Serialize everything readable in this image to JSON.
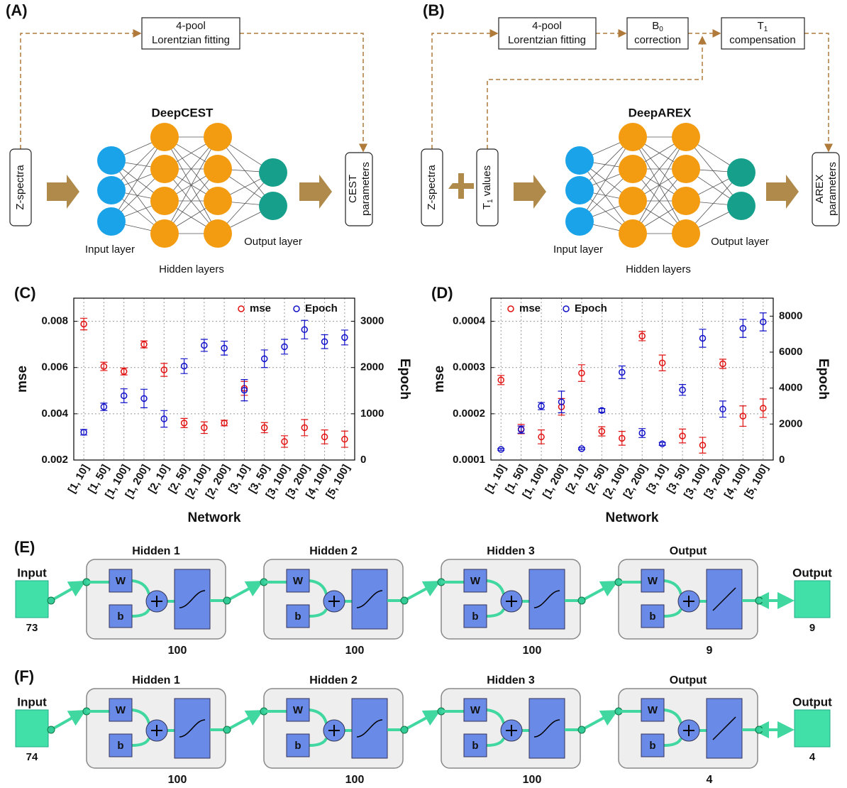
{
  "diagram_a": {
    "label": "(A)",
    "fitting": [
      "4-pool",
      "Lorentzian fitting"
    ],
    "input": "Z-spectra",
    "network": "DeepCEST",
    "output": [
      "CEST",
      "parameters"
    ],
    "input_layer": "Input layer",
    "hidden_layers": "Hidden layers",
    "output_layer": "Output layer"
  },
  "diagram_b": {
    "label": "(B)",
    "fitting": [
      "4-pool",
      "Lorentzian fitting"
    ],
    "b0": {
      "symbol": "B",
      "sub": "0",
      "text": "correction"
    },
    "t1": {
      "symbol": "T",
      "sub": "1",
      "text": "compensation"
    },
    "input": "Z-spectra",
    "t1_input": {
      "symbol": "T",
      "sub": "1",
      "text": " values"
    },
    "network": "DeepAREX",
    "output": [
      "AREX",
      "parameters"
    ],
    "input_layer": "Input layer",
    "hidden_layers": "Hidden layers",
    "output_layer": "Output layer"
  },
  "chart_data": [
    {
      "type": "scatter",
      "label": "(C)",
      "xlabel": "Network",
      "ylabel": "mse",
      "y2label": "Epoch",
      "legend": "upper right",
      "grid": true,
      "categories": [
        "[1, 10]",
        "[1, 50]",
        "[1, 100]",
        "[1, 200]",
        "[2, 10]",
        "[2, 50]",
        "[2, 100]",
        "[2, 200]",
        "[3, 10]",
        "[3, 50]",
        "[3, 100]",
        "[3, 200]",
        "[4, 100]",
        "[5, 100]"
      ],
      "ylim": [
        0.002,
        0.009
      ],
      "yticks": [
        0.002,
        0.004,
        0.006,
        0.008
      ],
      "y2lim": [
        0,
        3500
      ],
      "y2ticks": [
        0,
        1000,
        2000,
        3000
      ],
      "series": [
        {
          "name": "mse",
          "color": "#e01010",
          "values": [
            0.00788,
            0.00605,
            0.00583,
            0.007,
            0.0059,
            0.0036,
            0.0034,
            0.0036,
            0.0051,
            0.0034,
            0.0028,
            0.0034,
            0.003,
            0.0029
          ],
          "errors": [
            0.00025,
            0.00018,
            0.00015,
            0.00015,
            0.00028,
            0.0002,
            0.00025,
            0.00012,
            0.0003,
            0.00022,
            0.00025,
            0.00035,
            0.0003,
            0.00035
          ]
        },
        {
          "name": "Epoch",
          "color": "#1010c8",
          "axis": "y2",
          "values": [
            600,
            1150,
            1390,
            1330,
            890,
            2030,
            2480,
            2420,
            1510,
            2190,
            2450,
            2820,
            2560,
            2650
          ],
          "errors": [
            60,
            80,
            150,
            200,
            180,
            160,
            130,
            150,
            230,
            190,
            160,
            200,
            150,
            160
          ]
        }
      ]
    },
    {
      "type": "scatter",
      "label": "(D)",
      "xlabel": "Network",
      "ylabel": "mse",
      "y2label": "Epoch",
      "legend": "upper left",
      "grid": true,
      "categories": [
        "[1, 10]",
        "[1, 50]",
        "[1, 100]",
        "[1, 200]",
        "[2, 10]",
        "[2, 50]",
        "[2, 100]",
        "[2, 200]",
        "[3, 10]",
        "[3, 50]",
        "[3, 100]",
        "[3, 200]",
        "[4, 100]",
        "[5, 100]"
      ],
      "ylim": [
        0.0001,
        0.00045
      ],
      "yticks": [
        0.0001,
        0.0002,
        0.0003,
        0.0004
      ],
      "y2lim": [
        0,
        9000
      ],
      "y2ticks": [
        0,
        2000,
        4000,
        6000,
        8000
      ],
      "series": [
        {
          "name": "mse",
          "color": "#e01010",
          "values": [
            0.000273,
            0.000167,
            0.00015,
            0.000215,
            0.000288,
            0.000162,
            0.000147,
            0.000368,
            0.00031,
            0.000152,
            0.000132,
            0.000308,
            0.000195,
            0.000212
          ],
          "errors": [
            1e-05,
            1e-05,
            1.5e-05,
            1.8e-05,
            1.8e-05,
            1e-05,
            1.5e-05,
            1e-05,
            1.7e-05,
            1.5e-05,
            1.7e-05,
            1e-05,
            2.2e-05,
            2e-05
          ]
        },
        {
          "name": "Epoch",
          "color": "#1010c8",
          "axis": "y2",
          "values": [
            590,
            1690,
            3000,
            3230,
            630,
            2760,
            4880,
            1500,
            900,
            3900,
            6770,
            2830,
            7320,
            7680
          ],
          "errors": [
            50,
            200,
            200,
            600,
            50,
            100,
            350,
            250,
            80,
            300,
            500,
            450,
            500,
            500
          ]
        }
      ]
    }
  ],
  "network_e": {
    "label": "(E)",
    "input": "Input",
    "input_size": 73,
    "output": "Output",
    "output_size": 9,
    "weight": "W",
    "bias": "b",
    "layers": [
      {
        "name": "Hidden 1",
        "size": 100
      },
      {
        "name": "Hidden 2",
        "size": 100
      },
      {
        "name": "Hidden 3",
        "size": 100
      },
      {
        "name": "Output",
        "size": 9
      }
    ]
  },
  "network_f": {
    "label": "(F)",
    "input": "Input",
    "input_size": 74,
    "output": "Output",
    "output_size": 4,
    "weight": "W",
    "bias": "b",
    "layers": [
      {
        "name": "Hidden 1",
        "size": 100
      },
      {
        "name": "Hidden 2",
        "size": 100
      },
      {
        "name": "Hidden 3",
        "size": 100
      },
      {
        "name": "Output",
        "size": 4
      }
    ]
  }
}
